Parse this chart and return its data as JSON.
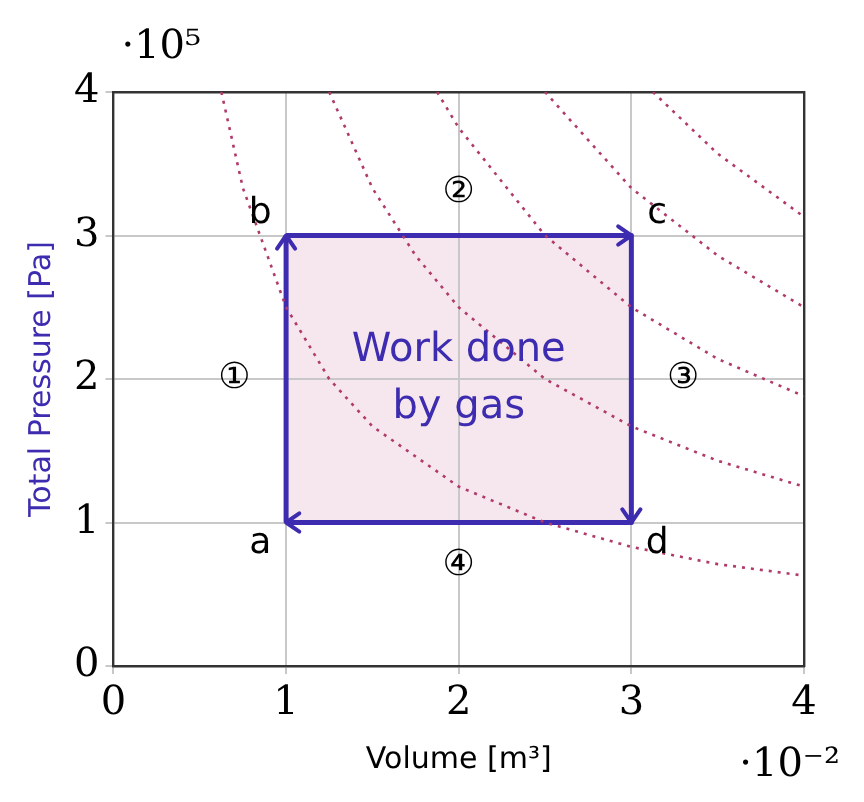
{
  "chart_data": {
    "type": "line",
    "xlabel": "Volume [m³]",
    "ylabel": "Total Pressure [Pa]",
    "xlim": [
      0,
      4
    ],
    "ylim": [
      0,
      4
    ],
    "xticks": [
      0,
      1,
      2,
      3,
      4
    ],
    "yticks": [
      0,
      1,
      2,
      3,
      4
    ],
    "grid": true,
    "marker": "none",
    "series": [
      {
        "color": "#3d2bb0",
        "x": [
          1,
          1
        ],
        "values": [
          1,
          3
        ]
      },
      {
        "color": "#3d2bb0",
        "x": [
          1,
          3
        ],
        "values": [
          3,
          3
        ]
      },
      {
        "color": "#3d2bb0",
        "x": [
          3,
          3
        ],
        "values": [
          3,
          1
        ]
      },
      {
        "color": "#3d2bb0",
        "x": [
          3,
          1
        ],
        "values": [
          1,
          1
        ]
      },
      {
        "color": "#b03a6a",
        "line_style": "dotted",
        "x": [
          0.625,
          0.75,
          1,
          1.25,
          1.5,
          2,
          2.5,
          3,
          3.5,
          4
        ],
        "values": [
          4,
          3.33,
          2.5,
          2,
          1.67,
          1.25,
          1,
          0.83,
          0.71,
          0.63
        ]
      },
      {
        "color": "#b03a6a",
        "line_style": "dotted",
        "x": [
          1.25,
          1.5,
          1.75,
          2,
          2.5,
          3,
          3.5,
          4
        ],
        "values": [
          4,
          3.33,
          2.86,
          2.5,
          2,
          1.67,
          1.43,
          1.25
        ]
      },
      {
        "color": "#b03a6a",
        "line_style": "dotted",
        "x": [
          1.875,
          2,
          2.5,
          3,
          3.5,
          4
        ],
        "values": [
          4,
          3.75,
          3,
          2.5,
          2.14,
          1.88
        ]
      },
      {
        "color": "#b03a6a",
        "line_style": "dotted",
        "x": [
          2.5,
          3,
          3.5,
          4
        ],
        "values": [
          4,
          3.33,
          2.86,
          2.5
        ]
      },
      {
        "color": "#b03a6a",
        "line_style": "dotted",
        "x": [
          3.125,
          3.5,
          4
        ],
        "values": [
          4,
          3.57,
          3.13
        ]
      }
    ],
    "annotations": [
      "·10⁵",
      "·10⁻²",
      "a",
      "b",
      "c",
      "d",
      "①",
      "②",
      "③",
      "④",
      "Work done",
      "by gas"
    ]
  }
}
